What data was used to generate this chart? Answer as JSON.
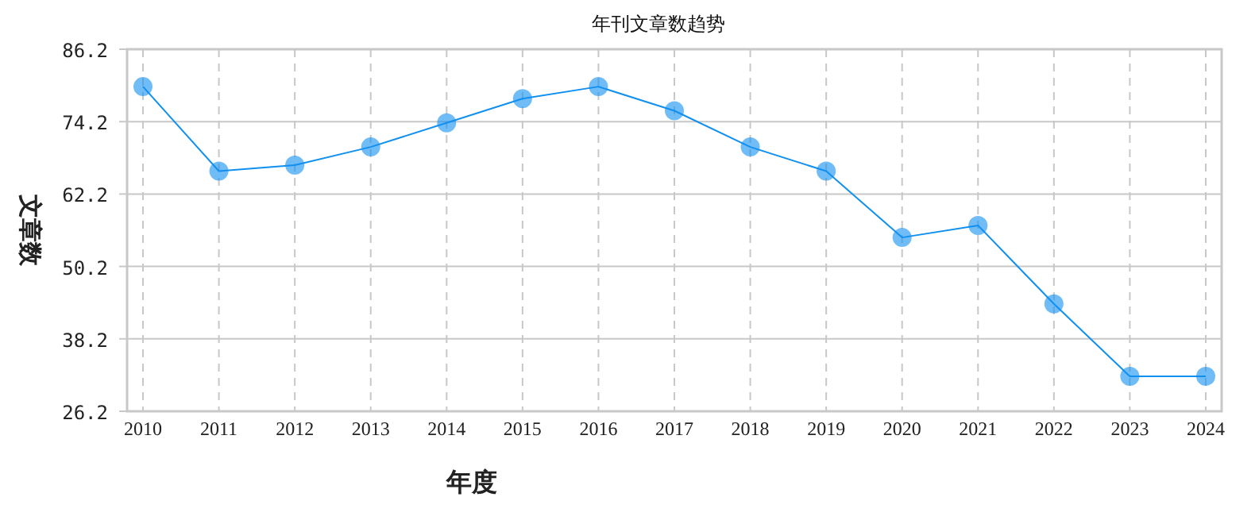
{
  "chart_data": {
    "type": "line",
    "title": "年刊文章数趋势",
    "xlabel": "年度",
    "ylabel": "文章数",
    "categories": [
      "2010",
      "2011",
      "2012",
      "2013",
      "2014",
      "2015",
      "2016",
      "2017",
      "2018",
      "2019",
      "2020",
      "2021",
      "2022",
      "2023",
      "2024"
    ],
    "values": [
      80,
      66,
      67,
      70,
      74,
      78,
      80,
      76,
      70,
      66,
      55,
      57,
      44,
      32,
      32
    ],
    "color": "#1090f0",
    "ylim": [
      26.2,
      86.2
    ],
    "yticks": [
      26.2,
      38.2,
      50.2,
      62.2,
      74.2,
      86.2
    ],
    "grid": true,
    "marker": "circle"
  }
}
